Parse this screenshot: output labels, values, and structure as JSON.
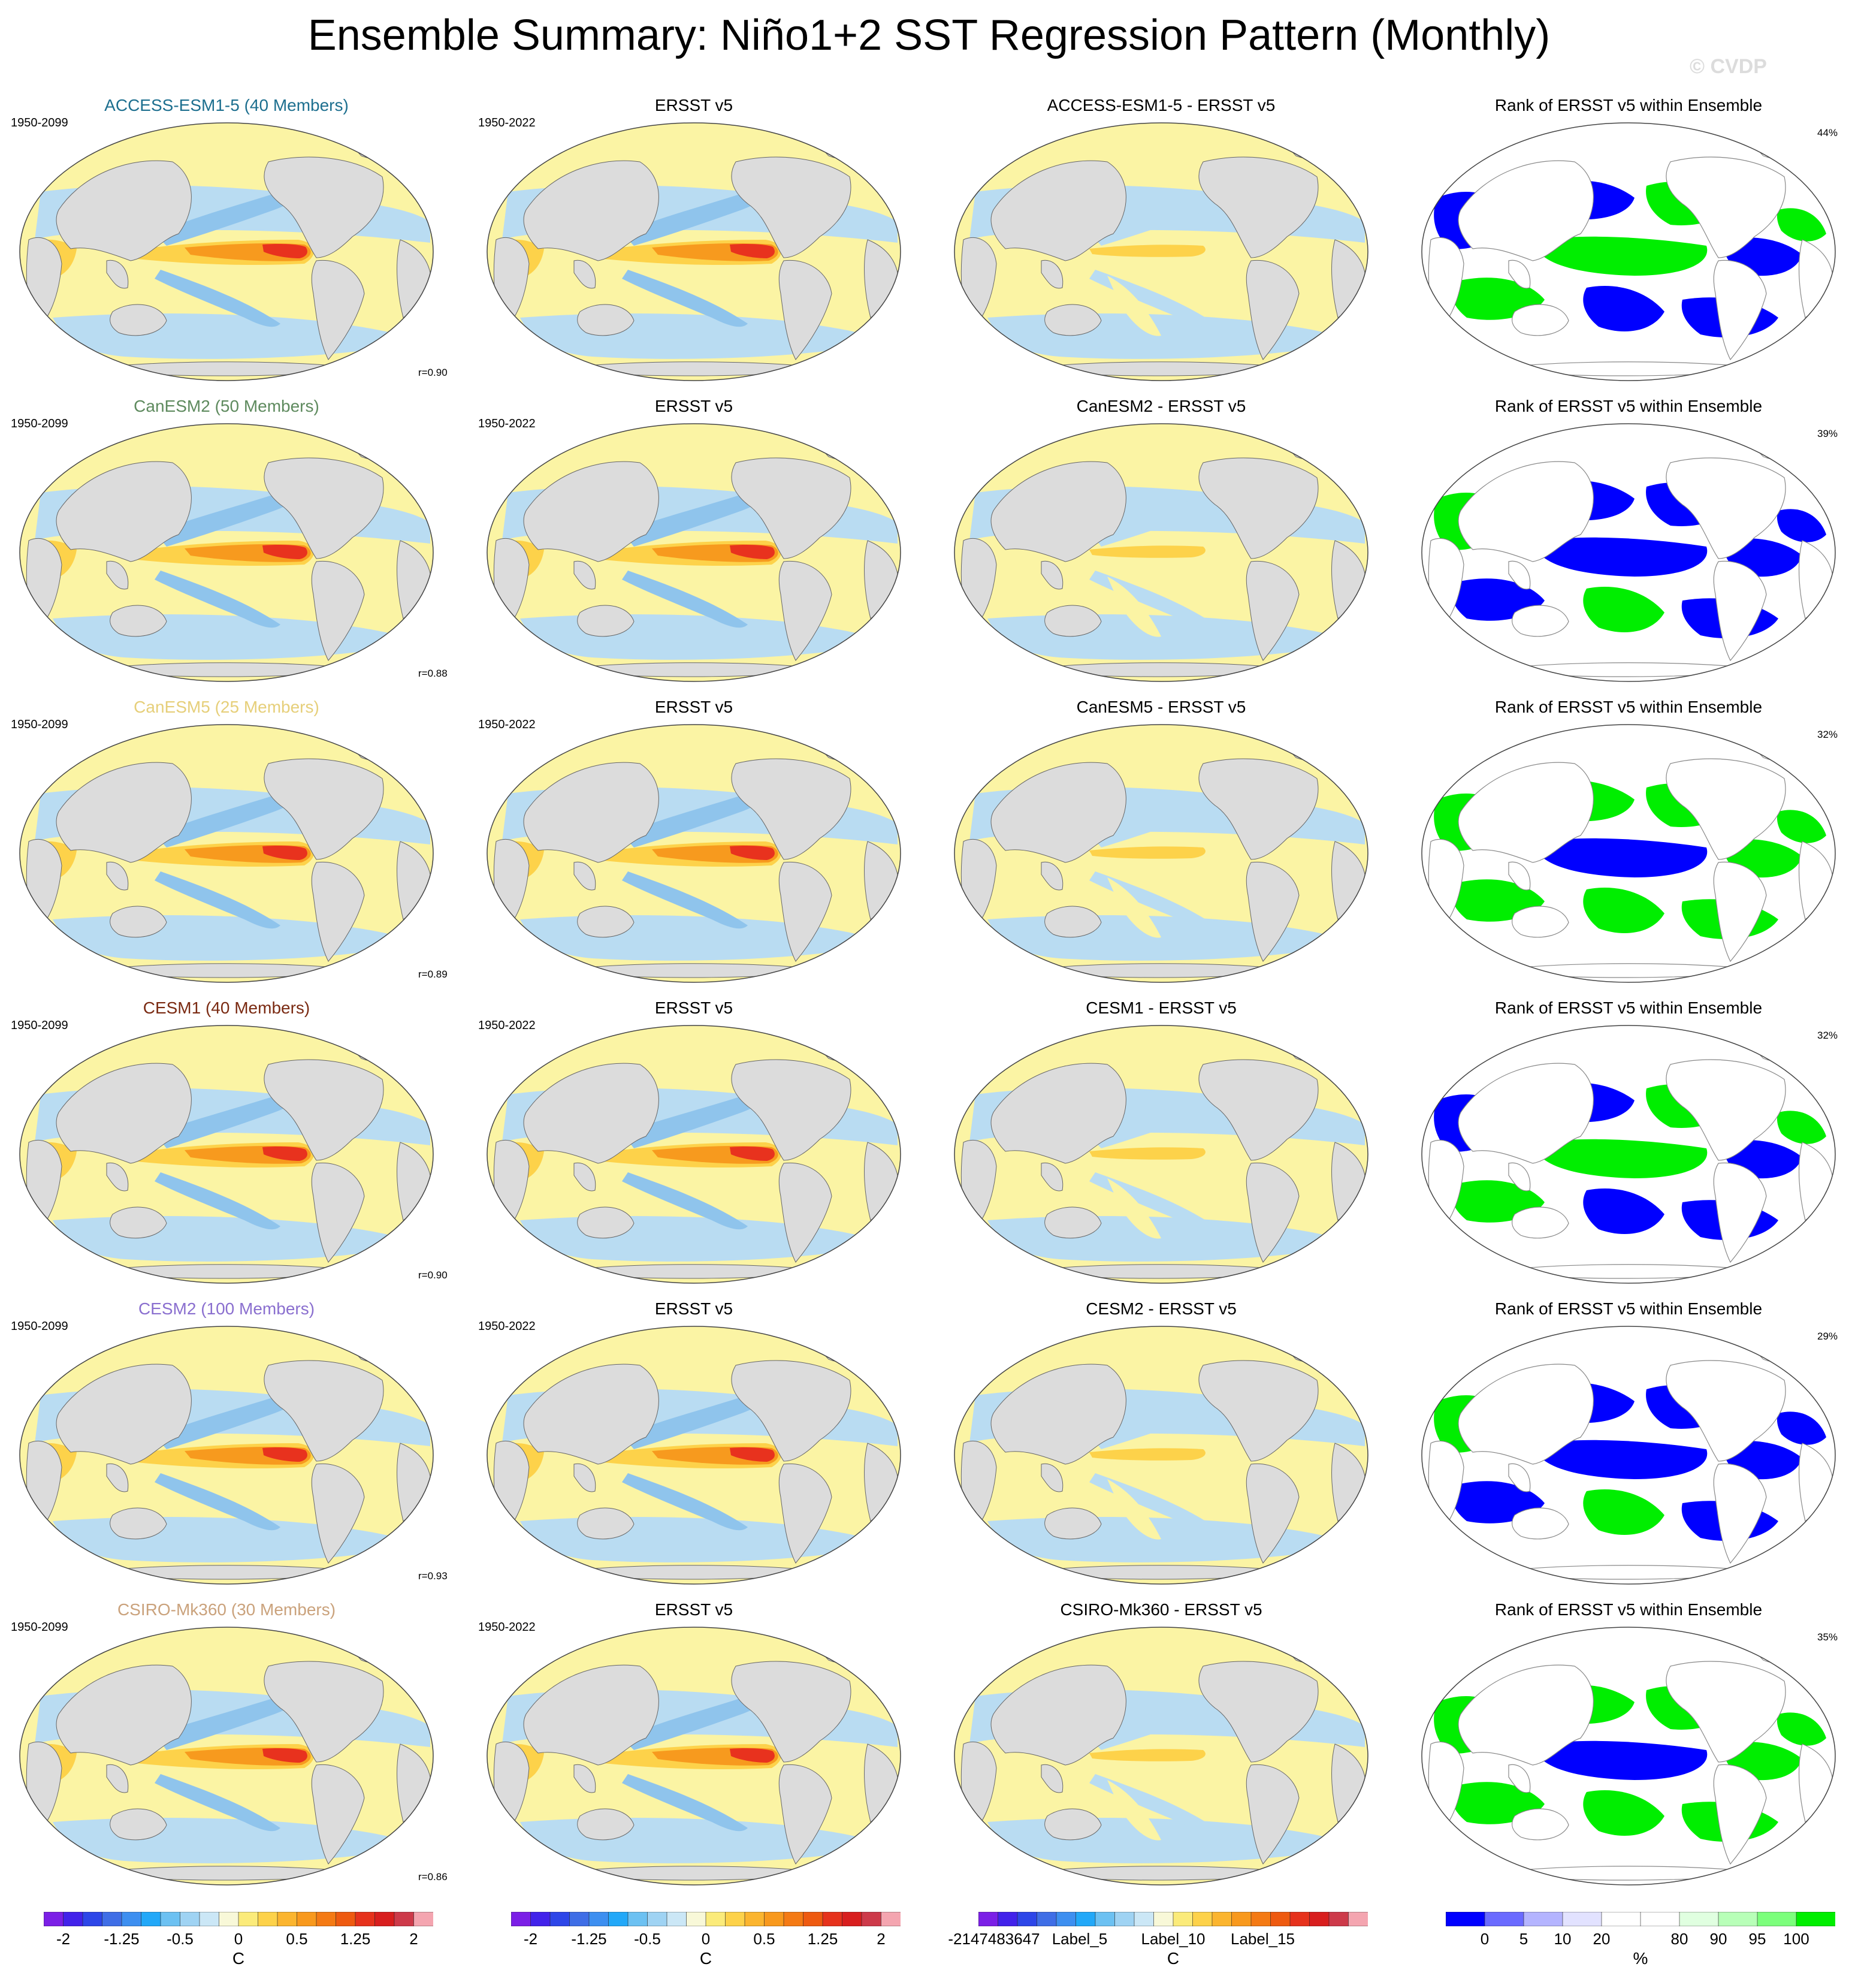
{
  "title": "Ensemble Summary: Niño1+2 SST Regression Pattern (Monthly)",
  "watermark": "© CVDP",
  "colors": {
    "land": "#dcdcdc",
    "neg_light": "#b9dcf2",
    "neg_mid": "#8fc4ec",
    "neg_strong": "#45a7ea",
    "pos_light": "#fbf4a4",
    "pos_mid": "#fdd24a",
    "pos_strong": "#f79a1e",
    "pos_max": "#e8321e",
    "rank_low": "#0000ff",
    "rank_high": "#00ee00"
  },
  "rows": [
    {
      "model": {
        "title": "ACCESS-ESM1-5 (40 Members)",
        "color": "#1d6f8f",
        "period": "1950-2099",
        "r": "r=0.90"
      },
      "obs": {
        "title": "ERSST v5",
        "period": "1950-2022"
      },
      "diff": {
        "title": "ACCESS-ESM1-5 - ERSST v5"
      },
      "rank": {
        "title": "Rank of ERSST v5 within Ensemble",
        "pct": "44%"
      }
    },
    {
      "model": {
        "title": "CanESM2 (50 Members)",
        "color": "#5e8a5e",
        "period": "1950-2099",
        "r": "r=0.88"
      },
      "obs": {
        "title": "ERSST v5",
        "period": "1950-2022"
      },
      "diff": {
        "title": "CanESM2 - ERSST v5"
      },
      "rank": {
        "title": "Rank of ERSST v5 within Ensemble",
        "pct": "39%"
      }
    },
    {
      "model": {
        "title": "CanESM5 (25 Members)",
        "color": "#e6cf7a",
        "period": "1950-2099",
        "r": "r=0.89"
      },
      "obs": {
        "title": "ERSST v5",
        "period": "1950-2022"
      },
      "diff": {
        "title": "CanESM5 - ERSST v5"
      },
      "rank": {
        "title": "Rank of ERSST v5 within Ensemble",
        "pct": "32%"
      }
    },
    {
      "model": {
        "title": "CESM1 (40 Members)",
        "color": "#7a2a12",
        "period": "1950-2099",
        "r": "r=0.90"
      },
      "obs": {
        "title": "ERSST v5",
        "period": "1950-2022"
      },
      "diff": {
        "title": "CESM1 - ERSST v5"
      },
      "rank": {
        "title": "Rank of ERSST v5 within Ensemble",
        "pct": "32%"
      }
    },
    {
      "model": {
        "title": "CESM2 (100 Members)",
        "color": "#8a6fcf",
        "period": "1950-2099",
        "r": "r=0.93"
      },
      "obs": {
        "title": "ERSST v5",
        "period": "1950-2022"
      },
      "diff": {
        "title": "CESM2 - ERSST v5"
      },
      "rank": {
        "title": "Rank of ERSST v5 within Ensemble",
        "pct": "29%"
      }
    },
    {
      "model": {
        "title": "CSIRO-Mk360 (30 Members)",
        "color": "#caa27c",
        "period": "1950-2099",
        "r": "r=0.86"
      },
      "obs": {
        "title": "ERSST v5",
        "period": "1950-2022"
      },
      "diff": {
        "title": "CSIRO-Mk360 - ERSST v5"
      },
      "rank": {
        "title": "Rank of ERSST v5 within Ensemble",
        "pct": "35%"
      }
    }
  ],
  "colorbars": [
    {
      "unit": "C",
      "labels": [
        "-2",
        "-1.25",
        "-0.5",
        "0",
        "0.5",
        "1.25",
        "2"
      ],
      "colors": [
        "#7b1fe6",
        "#4222ea",
        "#2d46e8",
        "#3f6ee6",
        "#3d8ff0",
        "#22a8f8",
        "#6cc1f2",
        "#9fd3f3",
        "#cbe7f6",
        "#f8f8d8",
        "#fbeb7a",
        "#fdd24a",
        "#fbb52f",
        "#f8991d",
        "#f47a14",
        "#ee5a10",
        "#e6321c",
        "#d81e1e",
        "#cd3a4a",
        "#f4a5b0"
      ]
    },
    {
      "unit": "C",
      "labels": [
        "-2",
        "-1.25",
        "-0.5",
        "0",
        "0.5",
        "1.25",
        "2"
      ],
      "colors": [
        "#7b1fe6",
        "#4222ea",
        "#2d46e8",
        "#3f6ee6",
        "#3d8ff0",
        "#22a8f8",
        "#6cc1f2",
        "#9fd3f3",
        "#cbe7f6",
        "#f8f8d8",
        "#fbeb7a",
        "#fdd24a",
        "#fbb52f",
        "#f8991d",
        "#f47a14",
        "#ee5a10",
        "#e6321c",
        "#d81e1e",
        "#cd3a4a",
        "#f4a5b0"
      ]
    },
    {
      "unit": "C",
      "labels": [
        "-2147483647",
        "Label_5",
        "Label_10",
        "Label_15"
      ],
      "colors": [
        "#7b1fe6",
        "#4222ea",
        "#2d46e8",
        "#3f6ee6",
        "#3d8ff0",
        "#22a8f8",
        "#6cc1f2",
        "#9fd3f3",
        "#cbe7f6",
        "#f8f8d8",
        "#fbeb7a",
        "#fdd24a",
        "#fbb52f",
        "#f8991d",
        "#f47a14",
        "#ee5a10",
        "#e6321c",
        "#d81e1e",
        "#cd3a4a",
        "#f4a5b0"
      ]
    },
    {
      "unit": "%",
      "labels": [
        "0",
        "5",
        "10",
        "20",
        "80",
        "90",
        "95",
        "100"
      ],
      "colors": [
        "#0000ff",
        "#6a6aff",
        "#b4b4ff",
        "#e2e2ff",
        "#ffffff",
        "#ffffff",
        "#e0ffe0",
        "#b8ffb8",
        "#7cff7c",
        "#00ee00"
      ]
    }
  ]
}
